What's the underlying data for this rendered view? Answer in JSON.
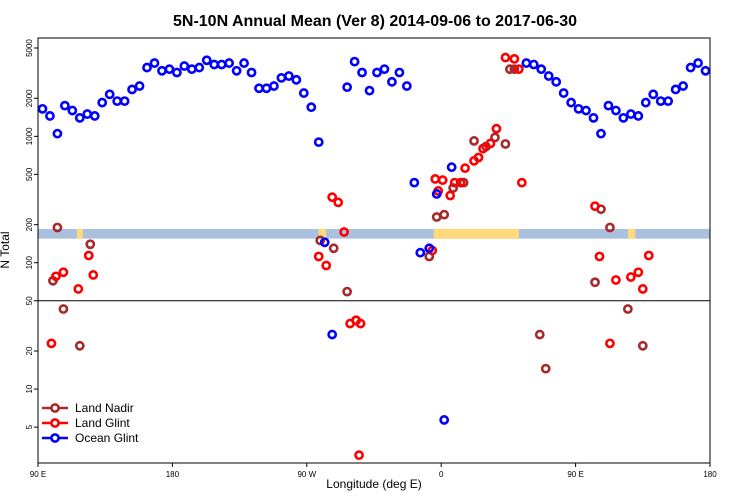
{
  "chart_data": {
    "type": "scatter",
    "title": "5N-10N Annual Mean (Ver 8)   2014-09-06 to 2017-06-30",
    "xlabel": "Longitude (deg E)",
    "ylabel": "N Total",
    "y_scale": "log",
    "ylim": [
      2.6,
      6000
    ],
    "x_ticks": [
      {
        "pos": 0,
        "label": "90 E"
      },
      {
        "pos": 90,
        "label": "180"
      },
      {
        "pos": 180,
        "label": "90 W"
      },
      {
        "pos": 270,
        "label": "0"
      },
      {
        "pos": 360,
        "label": "90 E"
      },
      {
        "pos": 450,
        "label": "180"
      }
    ],
    "y_ticks": [
      {
        "value": 5,
        "label": "5"
      },
      {
        "value": 10,
        "label": "10"
      },
      {
        "value": 20,
        "label": "20"
      },
      {
        "value": 50,
        "label": "50"
      },
      {
        "value": 100,
        "label": "100"
      },
      {
        "value": 200,
        "label": "200"
      },
      {
        "value": 500,
        "label": "500"
      },
      {
        "value": 1000,
        "label": "1000"
      },
      {
        "value": 2000,
        "label": "2000"
      },
      {
        "value": 5000,
        "label": "5000"
      }
    ],
    "reference_line": 50,
    "band": {
      "low": 155,
      "high": 185,
      "color": "#a9c0de",
      "highlight_color": "#ffd97a"
    },
    "legend_position": "bottom-left",
    "series": [
      {
        "name": "Land Nadir",
        "color": "#a52a2a",
        "x": [
          10,
          13,
          17,
          28,
          35,
          189,
          198,
          207,
          373,
          377,
          383,
          395,
          405,
          262,
          267,
          272,
          278,
          285,
          292,
          300,
          306,
          313,
          319,
          316,
          336,
          340
        ],
        "y": [
          72,
          190,
          43,
          22,
          140,
          150,
          130,
          59,
          70,
          265,
          190,
          43,
          22,
          112,
          230,
          240,
          390,
          430,
          920,
          830,
          980,
          870,
          3400,
          3400,
          27,
          14.5
        ]
      },
      {
        "name": "Land Glint",
        "color": "#ff0000",
        "x": [
          9,
          12,
          17,
          27,
          34,
          37,
          188,
          193,
          197,
          201,
          205,
          209,
          213,
          215,
          373,
          376,
          383,
          387,
          397,
          402,
          405,
          409,
          213,
          216,
          264,
          266,
          268,
          271,
          276,
          279,
          283,
          286,
          292,
          295,
          298,
          303,
          307,
          313,
          319,
          322,
          324
        ],
        "y": [
          23,
          78,
          84,
          62,
          114,
          80,
          112,
          95,
          330,
          300,
          175,
          33,
          35,
          3,
          280,
          112,
          23,
          73,
          77,
          84,
          62,
          114,
          35,
          33,
          125,
          460,
          370,
          450,
          340,
          430,
          430,
          560,
          640,
          680,
          800,
          880,
          1150,
          4200,
          4100,
          3400,
          430
        ]
      },
      {
        "name": "Ocean Glint",
        "color": "#0000ff",
        "x": [
          3,
          8,
          13,
          18,
          23,
          28,
          33,
          38,
          43,
          48,
          53,
          58,
          63,
          68,
          73,
          78,
          83,
          88,
          93,
          98,
          103,
          108,
          113,
          118,
          123,
          128,
          133,
          138,
          143,
          148,
          153,
          158,
          163,
          168,
          173,
          178,
          183,
          188,
          192,
          197,
          207,
          212,
          217,
          222,
          227,
          232,
          237,
          242,
          247,
          252,
          256,
          262,
          267,
          272,
          277,
          327,
          332,
          337,
          342,
          347,
          352,
          357,
          362,
          367,
          372,
          377,
          382,
          387,
          392,
          397,
          402,
          407,
          412,
          417,
          422,
          427,
          432,
          437,
          442,
          447
        ],
        "y": [
          1650,
          1450,
          1050,
          1750,
          1600,
          1400,
          1500,
          1450,
          1850,
          2150,
          1900,
          1900,
          2350,
          2500,
          3500,
          3800,
          3300,
          3400,
          3200,
          3600,
          3400,
          3500,
          4000,
          3700,
          3700,
          3800,
          3300,
          3800,
          3200,
          2400,
          2400,
          2500,
          2900,
          3000,
          2800,
          2200,
          1700,
          900,
          145,
          27,
          2450,
          3900,
          3200,
          2300,
          3200,
          3400,
          2700,
          3200,
          2500,
          430,
          120,
          130,
          350,
          5.7,
          570,
          3800,
          3700,
          3400,
          3000,
          2700,
          2200,
          1850,
          1650,
          1600,
          1400,
          1050,
          1750,
          1600,
          1400,
          1500,
          1450,
          1850,
          2150,
          1900,
          1900,
          2350,
          2500,
          3500,
          3800,
          3300
        ]
      }
    ]
  }
}
